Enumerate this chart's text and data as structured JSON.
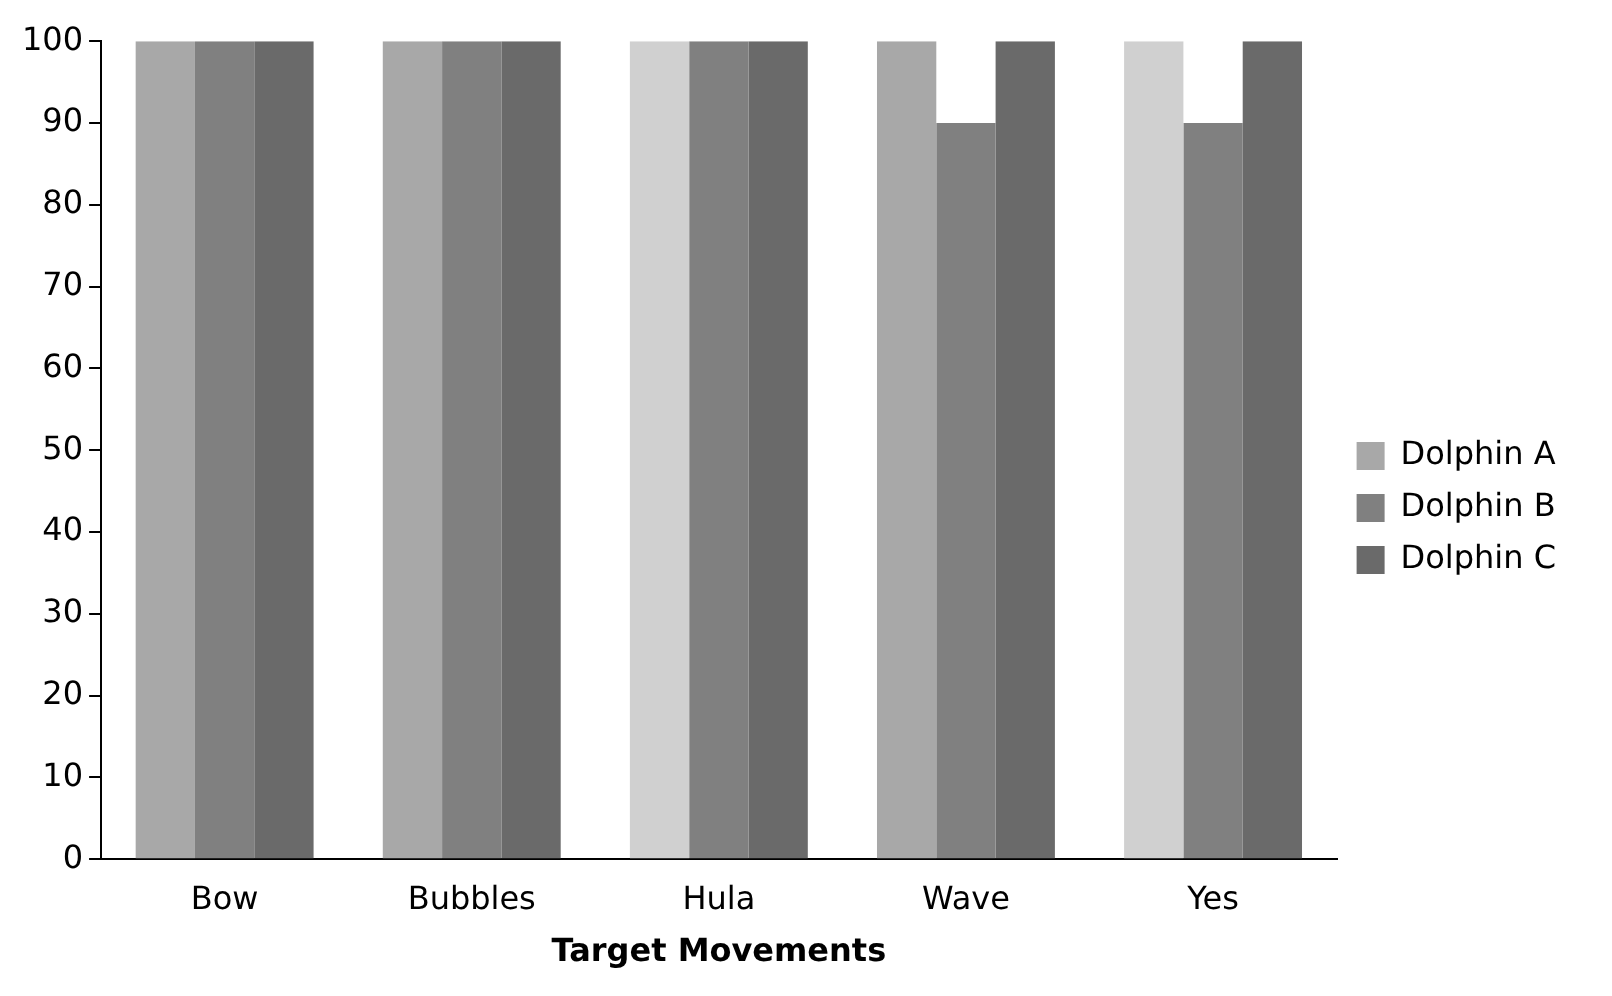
{
  "chart_data": {
    "type": "bar",
    "xlabel": "Target Movements",
    "categories": [
      "Bow",
      "Bubbles",
      "Hula",
      "Wave",
      "Yes"
    ],
    "series": [
      {
        "name": "Dolphin A",
        "color": "#a8a8a8",
        "colors": [
          "#a8a8a8",
          "#a8a8a8",
          "#d0d0d0",
          "#a8a8a8",
          "#d0d0d0"
        ],
        "values": [
          100,
          100,
          100,
          100,
          100
        ]
      },
      {
        "name": "Dolphin B",
        "color": "#808080",
        "values": [
          100,
          100,
          100,
          90,
          90
        ]
      },
      {
        "name": "Dolphin C",
        "color": "#6a6a6a",
        "values": [
          100,
          100,
          100,
          100,
          100
        ]
      }
    ],
    "ylim": [
      0,
      100
    ],
    "yticks": [
      0,
      10,
      20,
      30,
      40,
      50,
      60,
      70,
      80,
      90,
      100
    ],
    "grid": false,
    "legend": "right"
  }
}
